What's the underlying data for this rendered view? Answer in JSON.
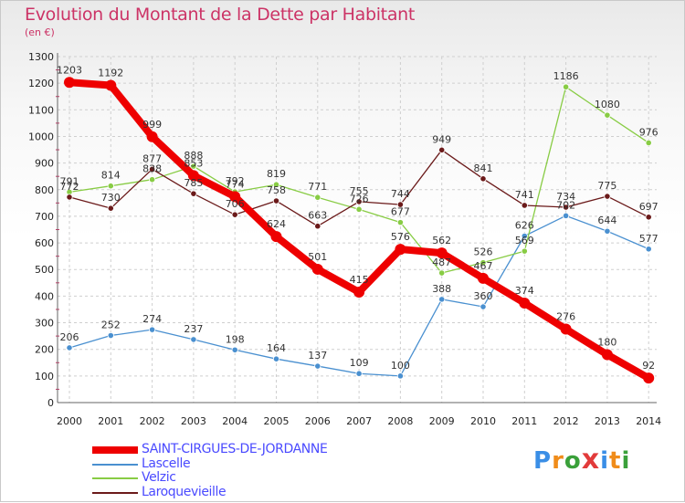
{
  "header": {
    "title": "Evolution du Montant de la Dette par Habitant",
    "unit": "(en €)"
  },
  "brand": {
    "letters": [
      "P",
      "r",
      "o",
      "x",
      "i",
      "t",
      "i"
    ],
    "colors": [
      "#3a8ee6",
      "#f08c1a",
      "#3aa03a",
      "#e23b3b",
      "#3a8ee6",
      "#f08c1a",
      "#3aa03a"
    ]
  },
  "chart_data": {
    "type": "line",
    "title": "Evolution du Montant de la Dette par Habitant",
    "ylabel": "(en €)",
    "xlabel": "",
    "x": [
      "2000",
      "2001",
      "2002",
      "2003",
      "2004",
      "2005",
      "2006",
      "2007",
      "2008",
      "2009",
      "2010",
      "2011",
      "2012",
      "2013",
      "2014"
    ],
    "ylim": [
      0,
      1300
    ],
    "yticks": [
      0,
      100,
      200,
      300,
      400,
      500,
      600,
      700,
      800,
      900,
      1000,
      1100,
      1200,
      1300
    ],
    "grid": true,
    "legend_position": "bottom-left",
    "series": [
      {
        "name": "SAINT-CIRGUES-DE-JORDANNE",
        "color": "#ee0000",
        "values": [
          1203,
          1192,
          999,
          853,
          774,
          624,
          501,
          415,
          576,
          562,
          467,
          374,
          276,
          180,
          92
        ]
      },
      {
        "name": "Lascelle",
        "color": "#4a90d0",
        "values": [
          206,
          252,
          274,
          237,
          198,
          164,
          137,
          109,
          100,
          388,
          360,
          626,
          702,
          644,
          577
        ]
      },
      {
        "name": "Velzic",
        "color": "#88cc44",
        "values": [
          791,
          814,
          838,
          888,
          792,
          819,
          771,
          726,
          677,
          487,
          526,
          569,
          1186,
          1080,
          976
        ]
      },
      {
        "name": "Laroquevieille",
        "color": "#6b1a1a",
        "values": [
          772,
          730,
          877,
          785,
          706,
          758,
          663,
          755,
          744,
          949,
          841,
          741,
          734,
          775,
          697
        ]
      }
    ]
  }
}
